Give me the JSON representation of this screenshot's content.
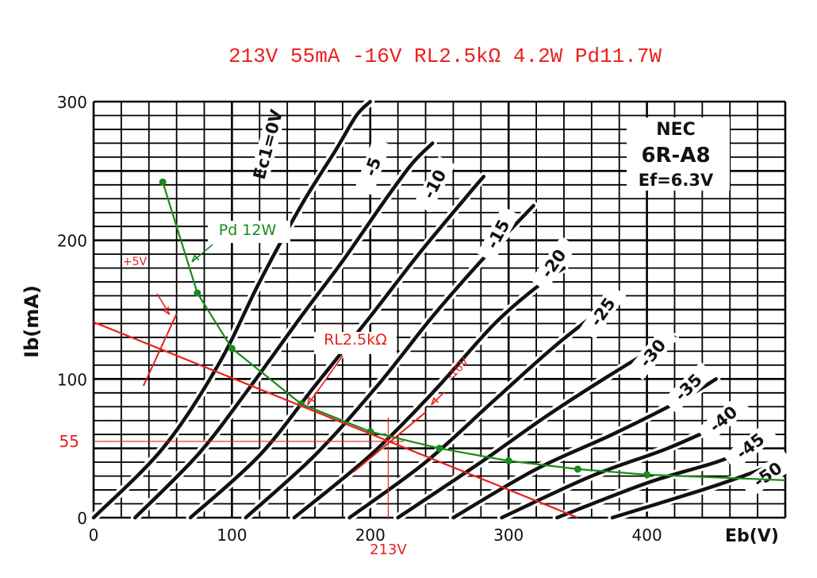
{
  "headline": "213V 55mA -16V RL2.5kΩ 4.2W Pd11.7W",
  "chart_data": {
    "type": "line",
    "maker": "NEC",
    "tube": "6R-A8",
    "heater": "Ef=6.3V",
    "xlabel": "Eb(V)",
    "ylabel": "Ib(mA)",
    "xlim": [
      0,
      500
    ],
    "ylim": [
      0,
      300
    ],
    "x_ticks": [
      "0",
      "100",
      "200",
      "300",
      "400"
    ],
    "y_ticks": [
      "0",
      "100",
      "200",
      "300"
    ],
    "grid": true,
    "grid_color": "#000000",
    "plate_curves": [
      {
        "label": "Ec1=0V",
        "points": [
          [
            0,
            0
          ],
          [
            50,
            50
          ],
          [
            90,
            110
          ],
          [
            120,
            170
          ],
          [
            150,
            225
          ],
          [
            175,
            265
          ],
          [
            190,
            290
          ],
          [
            200,
            300
          ]
        ]
      },
      {
        "label": "-5",
        "points": [
          [
            30,
            0
          ],
          [
            75,
            45
          ],
          [
            110,
            90
          ],
          [
            150,
            145
          ],
          [
            180,
            185
          ],
          [
            210,
            228
          ],
          [
            230,
            255
          ],
          [
            245,
            270
          ]
        ]
      },
      {
        "label": "-10",
        "points": [
          [
            70,
            0
          ],
          [
            120,
            45
          ],
          [
            160,
            95
          ],
          [
            200,
            145
          ],
          [
            235,
            190
          ],
          [
            270,
            232
          ],
          [
            282,
            246
          ]
        ]
      },
      {
        "label": "-15",
        "points": [
          [
            110,
            0
          ],
          [
            160,
            45
          ],
          [
            205,
            95
          ],
          [
            245,
            145
          ],
          [
            280,
            185
          ],
          [
            318,
            225
          ]
        ]
      },
      {
        "label": "-20",
        "points": [
          [
            145,
            0
          ],
          [
            200,
            45
          ],
          [
            245,
            90
          ],
          [
            290,
            140
          ],
          [
            325,
            170
          ],
          [
            340,
            180
          ]
        ]
      },
      {
        "label": "-25",
        "points": [
          [
            185,
            0
          ],
          [
            240,
            40
          ],
          [
            290,
            85
          ],
          [
            335,
            125
          ],
          [
            380,
            160
          ]
        ]
      },
      {
        "label": "-30",
        "points": [
          [
            220,
            0
          ],
          [
            280,
            40
          ],
          [
            330,
            75
          ],
          [
            385,
            110
          ],
          [
            420,
            130
          ]
        ]
      },
      {
        "label": "-35",
        "points": [
          [
            260,
            0
          ],
          [
            320,
            35
          ],
          [
            375,
            60
          ],
          [
            425,
            85
          ],
          [
            450,
            100
          ]
        ]
      },
      {
        "label": "-40",
        "points": [
          [
            295,
            0
          ],
          [
            360,
            30
          ],
          [
            415,
            50
          ],
          [
            460,
            70
          ]
        ]
      },
      {
        "label": "-45",
        "points": [
          [
            335,
            0
          ],
          [
            400,
            25
          ],
          [
            450,
            40
          ],
          [
            475,
            50
          ]
        ]
      },
      {
        "label": "-50",
        "points": [
          [
            375,
            0
          ],
          [
            440,
            20
          ],
          [
            475,
            32
          ],
          [
            495,
            40
          ]
        ]
      }
    ],
    "series": [
      {
        "name": "Pd 12W",
        "color": "#1a8a1a",
        "points": [
          [
            50,
            242
          ],
          [
            75,
            162
          ],
          [
            100,
            122
          ],
          [
            150,
            82
          ],
          [
            200,
            62
          ],
          [
            250,
            50
          ],
          [
            300,
            41
          ],
          [
            350,
            35
          ],
          [
            400,
            31
          ],
          [
            500,
            27
          ]
        ]
      },
      {
        "name": "RL2.5kΩ",
        "color": "#e8201e",
        "points": [
          [
            0,
            141
          ],
          [
            350,
            0
          ]
        ]
      }
    ],
    "operating_point": {
      "x": 213,
      "y": 55,
      "x_label": "213V",
      "y_label": "55"
    },
    "annotations": [
      {
        "text": "+5V",
        "color": "#e8201e"
      },
      {
        "text": "-16V",
        "color": "#e8201e"
      },
      {
        "text": "RL2.5kΩ",
        "color": "#e8201e"
      },
      {
        "text": "Pd 12W",
        "color": "#1a8a1a"
      }
    ]
  }
}
